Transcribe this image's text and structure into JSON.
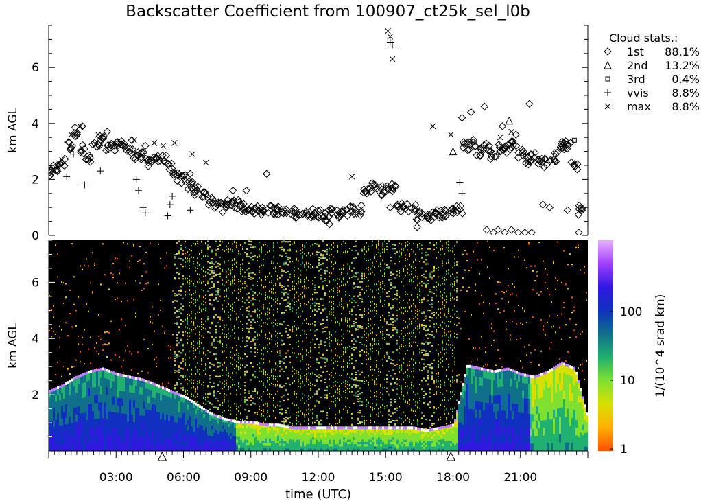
{
  "title": "Backscatter Coefficient from 100907_ct25k_sel_l0b",
  "chart_data": [
    {
      "type": "scatter",
      "ylabel": "km AGL",
      "ylim": [
        0,
        7.5
      ],
      "xlim": [
        0,
        24
      ],
      "y_ticks": [
        "0",
        "2",
        "4",
        "6"
      ],
      "legend": {
        "title": "Cloud stats.:",
        "placement": "right",
        "entries": [
          {
            "marker": "diamond",
            "name": "1st",
            "value": "88.1%"
          },
          {
            "marker": "triangle",
            "name": "2nd",
            "value": "13.2%"
          },
          {
            "marker": "square",
            "name": "3rd",
            "value": "0.4%"
          },
          {
            "marker": "plus",
            "name": "vvis",
            "value": "8.8%"
          },
          {
            "marker": "cross",
            "name": "max",
            "value": "8.8%"
          }
        ]
      },
      "series": [
        {
          "marker": "diamond",
          "x": [
            0.0,
            0.3,
            0.6,
            0.9,
            1.2,
            1.5,
            1.8,
            2.1,
            2.4,
            2.7,
            3.0,
            3.3,
            3.6,
            3.9,
            4.2,
            4.5,
            4.8,
            5.1,
            5.4,
            5.7,
            6.0,
            6.3,
            6.6,
            6.9,
            7.2,
            7.5,
            7.8,
            8.1,
            8.4,
            8.7,
            9.0,
            9.3,
            9.6,
            9.9,
            10.2,
            10.5,
            10.8,
            11.1,
            11.4,
            11.7,
            12.0,
            12.3,
            12.6,
            12.9,
            13.2,
            13.5,
            13.8,
            14.1,
            14.4,
            14.7,
            15.0,
            15.3,
            15.6,
            15.9,
            16.2,
            16.5,
            16.8,
            17.1,
            17.4,
            17.7,
            18.0,
            18.3,
            18.6,
            18.9,
            19.2,
            19.5,
            19.8,
            20.1,
            20.4,
            20.7,
            21.0,
            21.3,
            21.6,
            21.9,
            22.2,
            22.5,
            22.8,
            23.1,
            23.4,
            23.7
          ],
          "y": [
            2.2,
            2.4,
            2.6,
            3.2,
            3.7,
            3.1,
            2.7,
            3.2,
            3.4,
            3.1,
            3.2,
            3.3,
            3.0,
            2.9,
            2.8,
            2.6,
            2.8,
            2.7,
            2.4,
            2.1,
            2.0,
            1.8,
            1.6,
            1.5,
            1.2,
            1.1,
            1.0,
            1.2,
            1.1,
            1.0,
            1.0,
            0.9,
            0.9,
            0.9,
            0.9,
            0.8,
            0.8,
            0.8,
            0.8,
            0.8,
            0.8,
            0.7,
            0.8,
            0.8,
            0.8,
            0.9,
            0.9,
            1.6,
            1.7,
            1.6,
            1.6,
            1.7,
            1.0,
            1.0,
            1.0,
            0.7,
            0.7,
            0.7,
            0.8,
            0.8,
            0.9,
            0.9,
            3.2,
            3.3,
            3.0,
            3.2,
            2.9,
            3.1,
            3.1,
            3.3,
            2.9,
            2.7,
            2.8,
            2.7,
            2.6,
            2.8,
            3.2,
            3.2,
            2.5,
            0.9
          ]
        },
        {
          "marker": "diamond",
          "x": [
            1.5,
            2.6,
            3.7,
            4.3,
            6.3,
            8.2,
            8.8,
            9.7,
            12.5,
            15.2,
            16.4,
            18.4,
            18.8,
            19.4,
            20.2,
            20.8,
            21.4,
            22.0,
            22.3,
            23.1,
            23.6
          ],
          "y": [
            3.9,
            3.7,
            3.4,
            3.2,
            2.2,
            1.6,
            1.6,
            2.2,
            0.4,
            1.0,
            0.3,
            4.2,
            4.4,
            4.6,
            3.9,
            3.6,
            4.7,
            1.1,
            1.0,
            0.9,
            0.1
          ]
        },
        {
          "marker": "diamond",
          "x": [
            19.5,
            19.8,
            20.0,
            20.3,
            20.6,
            20.9,
            21.2,
            21.5
          ],
          "y": [
            0.2,
            0.1,
            0.2,
            0.1,
            0.2,
            0.1,
            0.1,
            0.1
          ]
        },
        {
          "marker": "triangle",
          "x": [
            18.0,
            20.5,
            22.9
          ],
          "y": [
            3.0,
            4.1,
            3.3
          ]
        },
        {
          "marker": "square",
          "x": [
            23.4
          ],
          "y": [
            3.4
          ]
        },
        {
          "marker": "plus",
          "x": [
            0.8,
            1.1,
            1.6,
            2.3,
            3.9,
            4.0,
            4.2,
            4.3,
            5.3,
            5.4,
            5.5,
            6.3,
            6.6,
            15.2,
            15.3,
            18.3,
            18.4
          ],
          "y": [
            2.1,
            2.9,
            1.8,
            2.3,
            2.0,
            1.6,
            1.0,
            0.8,
            0.7,
            1.1,
            1.4,
            0.9,
            1.6,
            6.9,
            6.8,
            1.9,
            1.5
          ]
        },
        {
          "marker": "cross",
          "x": [
            0.6,
            1.0,
            1.4,
            2.2,
            3.8,
            4.7,
            5.1,
            5.6,
            6.4,
            7.0,
            13.5,
            15.1,
            15.2,
            15.3,
            17.1,
            17.9,
            20.1,
            20.6
          ],
          "y": [
            2.7,
            3.6,
            3.9,
            3.6,
            3.4,
            3.3,
            3.2,
            3.3,
            2.9,
            2.6,
            2.1,
            7.3,
            7.1,
            6.3,
            3.9,
            3.6,
            3.5,
            3.7
          ]
        }
      ]
    },
    {
      "type": "heatmap",
      "ylabel": "km AGL",
      "xlabel": "time (UTC)",
      "ylim": [
        0,
        7.5
      ],
      "xlim": [
        0,
        24
      ],
      "y_ticks": [
        "2",
        "4",
        "6"
      ],
      "x_ticks": [
        "03:00",
        "06:00",
        "09:00",
        "12:00",
        "15:00",
        "18:00",
        "21:00"
      ],
      "x_tick_hours": [
        3,
        6,
        9,
        12,
        15,
        18,
        21
      ],
      "triangle_marker_hours": [
        5.05,
        17.9
      ],
      "colorbar": {
        "label": "1/(10^4 srad km)",
        "scale": "log",
        "tick_labels": [
          "1",
          "10",
          "100"
        ],
        "colors": [
          "#ff5000",
          "#ffb000",
          "#d8e000",
          "#80e030",
          "#20b070",
          "#10708a",
          "#1030c0",
          "#3018e0",
          "#a040ff",
          "#e8b0ff"
        ]
      },
      "cloud_base_km": [
        [
          0.0,
          2.1
        ],
        [
          0.6,
          2.3
        ],
        [
          1.2,
          2.6
        ],
        [
          1.8,
          2.8
        ],
        [
          2.4,
          2.9
        ],
        [
          3.0,
          2.7
        ],
        [
          3.6,
          2.6
        ],
        [
          4.2,
          2.5
        ],
        [
          4.8,
          2.3
        ],
        [
          5.4,
          2.1
        ],
        [
          6.0,
          1.9
        ],
        [
          6.6,
          1.6
        ],
        [
          7.2,
          1.3
        ],
        [
          7.8,
          1.1
        ],
        [
          8.4,
          1.0
        ],
        [
          9.0,
          1.0
        ],
        [
          9.6,
          0.9
        ],
        [
          10.2,
          0.9
        ],
        [
          10.8,
          0.8
        ],
        [
          11.4,
          0.8
        ],
        [
          12.0,
          0.8
        ],
        [
          12.6,
          0.8
        ],
        [
          13.2,
          0.8
        ],
        [
          13.8,
          0.8
        ],
        [
          14.4,
          0.8
        ],
        [
          15.0,
          0.8
        ],
        [
          15.6,
          0.8
        ],
        [
          16.2,
          0.8
        ],
        [
          16.8,
          0.7
        ],
        [
          17.4,
          0.8
        ],
        [
          18.0,
          0.9
        ],
        [
          18.6,
          3.0
        ],
        [
          19.2,
          2.9
        ],
        [
          19.8,
          2.8
        ],
        [
          20.4,
          2.9
        ],
        [
          21.0,
          2.7
        ],
        [
          21.6,
          2.6
        ],
        [
          22.2,
          2.8
        ],
        [
          22.8,
          3.1
        ],
        [
          23.4,
          2.9
        ],
        [
          24.0,
          1.0
        ]
      ]
    }
  ]
}
